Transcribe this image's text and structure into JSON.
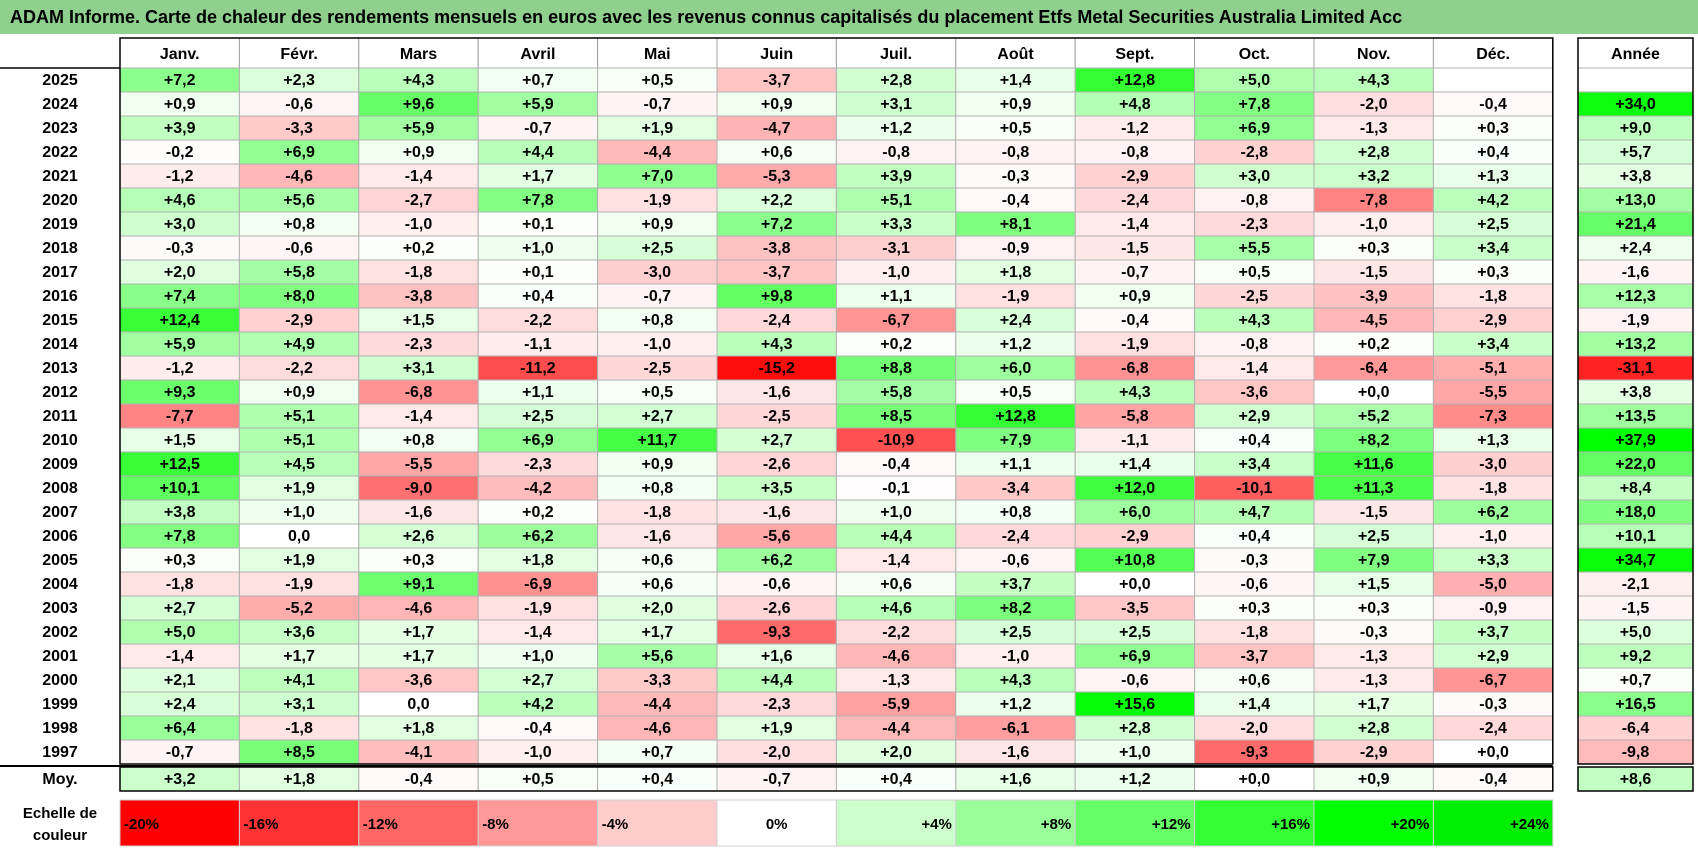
{
  "title": "ADAM Informe. Carte de chaleur des rendements mensuels en euros avec les revenus connus capitalisés du placement Etfs Metal Securities Australia Limited Acc",
  "chart_data": {
    "type": "heatmap",
    "title": "ADAM Informe. Carte de chaleur des rendements mensuels en euros avec les revenus connus capitalisés du placement Etfs Metal Securities Australia Limited Acc",
    "months": [
      "Janv.",
      "Févr.",
      "Mars",
      "Avril",
      "Mai",
      "Juin",
      "Juil.",
      "Août",
      "Sept.",
      "Oct.",
      "Nov.",
      "Déc."
    ],
    "year_header": "Année",
    "rows": [
      {
        "year": "2025",
        "values": [
          "+7,2",
          "+2,3",
          "+4,3",
          "+0,7",
          "+0,5",
          "-3,7",
          "+2,8",
          "+1,4",
          "+12,8",
          "+5,0",
          "+4,3",
          ""
        ],
        "annual": ""
      },
      {
        "year": "2024",
        "values": [
          "+0,9",
          "-0,6",
          "+9,6",
          "+5,9",
          "-0,7",
          "+0,9",
          "+3,1",
          "+0,9",
          "+4,8",
          "+7,8",
          "-2,0",
          "-0,4"
        ],
        "annual": "+34,0"
      },
      {
        "year": "2023",
        "values": [
          "+3,9",
          "-3,3",
          "+5,9",
          "-0,7",
          "+1,9",
          "-4,7",
          "+1,2",
          "+0,5",
          "-1,2",
          "+6,9",
          "-1,3",
          "+0,3"
        ],
        "annual": "+9,0"
      },
      {
        "year": "2022",
        "values": [
          "-0,2",
          "+6,9",
          "+0,9",
          "+4,4",
          "-4,4",
          "+0,6",
          "-0,8",
          "-0,8",
          "-0,8",
          "-2,8",
          "+2,8",
          "+0,4"
        ],
        "annual": "+5,7"
      },
      {
        "year": "2021",
        "values": [
          "-1,2",
          "-4,6",
          "-1,4",
          "+1,7",
          "+7,0",
          "-5,3",
          "+3,9",
          "-0,3",
          "-2,9",
          "+3,0",
          "+3,2",
          "+1,3"
        ],
        "annual": "+3,8"
      },
      {
        "year": "2020",
        "values": [
          "+4,6",
          "+5,6",
          "-2,7",
          "+7,8",
          "-1,9",
          "+2,2",
          "+5,1",
          "-0,4",
          "-2,4",
          "-0,8",
          "-7,8",
          "+4,2"
        ],
        "annual": "+13,0"
      },
      {
        "year": "2019",
        "values": [
          "+3,0",
          "+0,8",
          "-1,0",
          "+0,1",
          "+0,9",
          "+7,2",
          "+3,3",
          "+8,1",
          "-1,4",
          "-2,3",
          "-1,0",
          "+2,5"
        ],
        "annual": "+21,4"
      },
      {
        "year": "2018",
        "values": [
          "-0,3",
          "-0,6",
          "+0,2",
          "+1,0",
          "+2,5",
          "-3,8",
          "-3,1",
          "-0,9",
          "-1,5",
          "+5,5",
          "+0,3",
          "+3,4"
        ],
        "annual": "+2,4"
      },
      {
        "year": "2017",
        "values": [
          "+2,0",
          "+5,8",
          "-1,8",
          "+0,1",
          "-3,0",
          "-3,7",
          "-1,0",
          "+1,8",
          "-0,7",
          "+0,5",
          "-1,5",
          "+0,3"
        ],
        "annual": "-1,6"
      },
      {
        "year": "2016",
        "values": [
          "+7,4",
          "+8,0",
          "-3,8",
          "+0,4",
          "-0,7",
          "+9,8",
          "+1,1",
          "-1,9",
          "+0,9",
          "-2,5",
          "-3,9",
          "-1,8"
        ],
        "annual": "+12,3"
      },
      {
        "year": "2015",
        "values": [
          "+12,4",
          "-2,9",
          "+1,5",
          "-2,2",
          "+0,8",
          "-2,4",
          "-6,7",
          "+2,4",
          "-0,4",
          "+4,3",
          "-4,5",
          "-2,9"
        ],
        "annual": "-1,9"
      },
      {
        "year": "2014",
        "values": [
          "+5,9",
          "+4,9",
          "-2,3",
          "-1,1",
          "-1,0",
          "+4,3",
          "+0,2",
          "+1,2",
          "-1,9",
          "-0,8",
          "+0,2",
          "+3,4"
        ],
        "annual": "+13,2"
      },
      {
        "year": "2013",
        "values": [
          "-1,2",
          "-2,2",
          "+3,1",
          "-11,2",
          "-2,5",
          "-15,2",
          "+8,8",
          "+6,0",
          "-6,8",
          "-1,4",
          "-6,4",
          "-5,1"
        ],
        "annual": "-31,1"
      },
      {
        "year": "2012",
        "values": [
          "+9,3",
          "+0,9",
          "-6,8",
          "+1,1",
          "+0,5",
          "-1,6",
          "+5,8",
          "+0,5",
          "+4,3",
          "-3,6",
          "+0,0",
          "-5,5"
        ],
        "annual": "+3,8"
      },
      {
        "year": "2011",
        "values": [
          "-7,7",
          "+5,1",
          "-1,4",
          "+2,5",
          "+2,7",
          "-2,5",
          "+8,5",
          "+12,8",
          "-5,8",
          "+2,9",
          "+5,2",
          "-7,3"
        ],
        "annual": "+13,5"
      },
      {
        "year": "2010",
        "values": [
          "+1,5",
          "+5,1",
          "+0,8",
          "+6,9",
          "+11,7",
          "+2,7",
          "-10,9",
          "+7,9",
          "-1,1",
          "+0,4",
          "+8,2",
          "+1,3"
        ],
        "annual": "+37,9"
      },
      {
        "year": "2009",
        "values": [
          "+12,5",
          "+4,5",
          "-5,5",
          "-2,3",
          "+0,9",
          "-2,6",
          "-0,4",
          "+1,1",
          "+1,4",
          "+3,4",
          "+11,6",
          "-3,0"
        ],
        "annual": "+22,0"
      },
      {
        "year": "2008",
        "values": [
          "+10,1",
          "+1,9",
          "-9,0",
          "-4,2",
          "+0,8",
          "+3,5",
          "-0,1",
          "-3,4",
          "+12,0",
          "-10,1",
          "+11,3",
          "-1,8"
        ],
        "annual": "+8,4"
      },
      {
        "year": "2007",
        "values": [
          "+3,8",
          "+1,0",
          "-1,6",
          "+0,2",
          "-1,8",
          "-1,6",
          "+1,0",
          "+0,8",
          "+6,0",
          "+4,7",
          "-1,5",
          "+6,2"
        ],
        "annual": "+18,0"
      },
      {
        "year": "2006",
        "values": [
          "+7,8",
          "0,0",
          "+2,6",
          "+6,2",
          "-1,6",
          "-5,6",
          "+4,4",
          "-2,4",
          "-2,9",
          "+0,4",
          "+2,5",
          "-1,0"
        ],
        "annual": "+10,1"
      },
      {
        "year": "2005",
        "values": [
          "+0,3",
          "+1,9",
          "+0,3",
          "+1,8",
          "+0,6",
          "+6,2",
          "-1,4",
          "-0,6",
          "+10,8",
          "-0,3",
          "+7,9",
          "+3,3"
        ],
        "annual": "+34,7"
      },
      {
        "year": "2004",
        "values": [
          "-1,8",
          "-1,9",
          "+9,1",
          "-6,9",
          "+0,6",
          "-0,6",
          "+0,6",
          "+3,7",
          "+0,0",
          "-0,6",
          "+1,5",
          "-5,0"
        ],
        "annual": "-2,1"
      },
      {
        "year": "2003",
        "values": [
          "+2,7",
          "-5,2",
          "-4,6",
          "-1,9",
          "+2,0",
          "-2,6",
          "+4,6",
          "+8,2",
          "-3,5",
          "+0,3",
          "+0,3",
          "-0,9"
        ],
        "annual": "-1,5"
      },
      {
        "year": "2002",
        "values": [
          "+5,0",
          "+3,6",
          "+1,7",
          "-1,4",
          "+1,7",
          "-9,3",
          "-2,2",
          "+2,5",
          "+2,5",
          "-1,8",
          "-0,3",
          "+3,7"
        ],
        "annual": "+5,0"
      },
      {
        "year": "2001",
        "values": [
          "-1,4",
          "+1,7",
          "+1,7",
          "+1,0",
          "+5,6",
          "+1,6",
          "-4,6",
          "-1,0",
          "+6,9",
          "-3,7",
          "-1,3",
          "+2,9"
        ],
        "annual": "+9,2"
      },
      {
        "year": "2000",
        "values": [
          "+2,1",
          "+4,1",
          "-3,6",
          "+2,7",
          "-3,3",
          "+4,4",
          "-1,3",
          "+4,3",
          "-0,6",
          "+0,6",
          "-1,3",
          "-6,7"
        ],
        "annual": "+0,7"
      },
      {
        "year": "1999",
        "values": [
          "+2,4",
          "+3,1",
          "0,0",
          "+4,2",
          "-4,4",
          "-2,3",
          "-5,9",
          "+1,2",
          "+15,6",
          "+1,4",
          "+1,7",
          "-0,3"
        ],
        "annual": "+16,5"
      },
      {
        "year": "1998",
        "values": [
          "+6,4",
          "-1,8",
          "+1,8",
          "-0,4",
          "-4,6",
          "+1,9",
          "-4,4",
          "-6,1",
          "+2,8",
          "-2,0",
          "+2,8",
          "-2,4"
        ],
        "annual": "-6,4"
      },
      {
        "year": "1997",
        "values": [
          "-0,7",
          "+8,5",
          "-4,1",
          "-1,0",
          "+0,7",
          "-2,0",
          "+2,0",
          "-1,6",
          "+1,0",
          "-9,3",
          "-2,9",
          "+0,0"
        ],
        "annual": "-9,8"
      }
    ],
    "average": {
      "label": "Moy.",
      "values": [
        "+3,2",
        "+1,8",
        "-0,4",
        "+0,5",
        "+0,4",
        "-0,7",
        "+0,4",
        "+1,6",
        "+1,2",
        "+0,0",
        "+0,9",
        "-0,4"
      ],
      "annual": "+8,6"
    },
    "color_scale": {
      "label": "Echelle de couleur",
      "steps": [
        "-20%",
        "-16%",
        "-12%",
        "-8%",
        "-4%",
        "0%",
        "+4%",
        "+8%",
        "+12%",
        "+16%",
        "+20%",
        "+24%"
      ],
      "step_colors": [
        "#ff0000",
        "#ff3333",
        "#ff6666",
        "#ff9999",
        "#ffcccc",
        "#ffffff",
        "#ccffcc",
        "#99ff99",
        "#66ff66",
        "#33ff33",
        "#00ff00",
        "#00ee00"
      ]
    },
    "colors": {
      "negative_max": "#ff0000",
      "neutral": "#ffffff",
      "positive_max": "#00ff00",
      "title_bg": "#8fd08f"
    }
  }
}
